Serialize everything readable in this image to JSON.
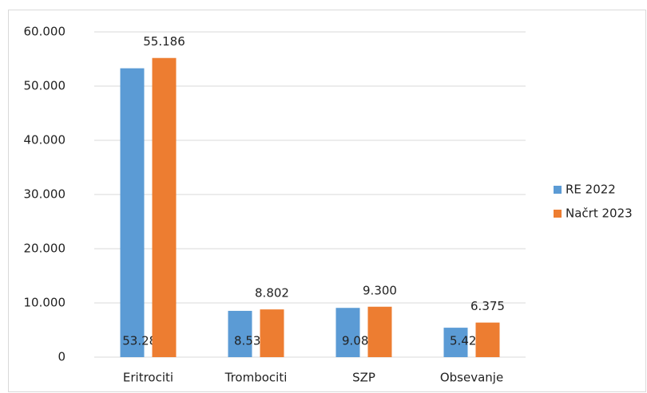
{
  "chart_data": {
    "type": "bar",
    "categories": [
      "Eritrociti",
      "Trombociti",
      "SZP",
      "Obsevanje"
    ],
    "series": [
      {
        "name": "RE 2022",
        "color": "#5b9bd5",
        "values": [
          53287,
          8537,
          9084,
          5427
        ],
        "value_labels": [
          "53.287",
          "8.537",
          "9.084",
          "5.427"
        ]
      },
      {
        "name": "Načrt 2023",
        "color": "#ed7d31",
        "values": [
          55186,
          8802,
          9300,
          6375
        ],
        "value_labels": [
          "55.186",
          "8.802",
          "9.300",
          "6.375"
        ]
      }
    ],
    "ylim": [
      0,
      60000
    ],
    "yticks": [
      0,
      {
        "value": 10000,
        "label": "10.000"
      },
      {
        "value": 20000,
        "label": "20.000"
      },
      {
        "value": 30000,
        "label": "30.000"
      },
      {
        "value": 40000,
        "label": "40.000"
      },
      {
        "value": 50000,
        "label": "50.000"
      },
      {
        "value": 60000,
        "label": "60.000"
      }
    ],
    "grid": true,
    "legend": "right"
  }
}
